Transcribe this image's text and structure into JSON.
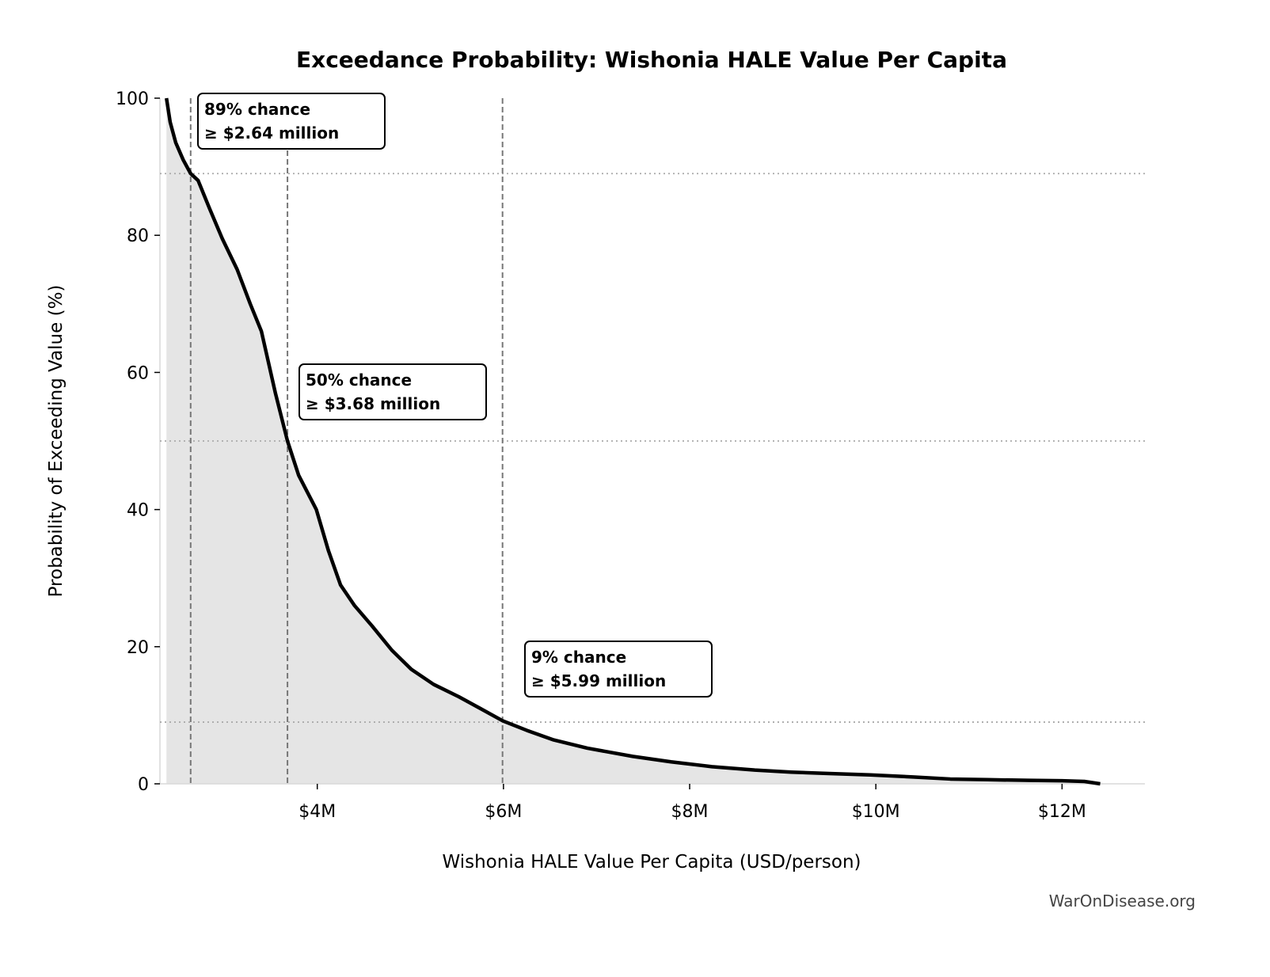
{
  "chart_data": {
    "type": "area",
    "title": "Exceedance Probability: Wishonia HALE Value Per Capita",
    "xlabel": "Wishonia HALE Value Per Capita (USD/person)",
    "ylabel": "Probability of Exceeding Value (%)",
    "xlim": [
      2.31,
      12.89
    ],
    "ylim": [
      0,
      100
    ],
    "x_ticks": [
      {
        "value": 4,
        "label": "$4M"
      },
      {
        "value": 6,
        "label": "$6M"
      },
      {
        "value": 8,
        "label": "$8M"
      },
      {
        "value": 10,
        "label": "$10M"
      },
      {
        "value": 12,
        "label": "$12M"
      }
    ],
    "y_ticks": [
      {
        "value": 0,
        "label": "0"
      },
      {
        "value": 20,
        "label": "20"
      },
      {
        "value": 40,
        "label": "40"
      },
      {
        "value": 60,
        "label": "60"
      },
      {
        "value": 80,
        "label": "80"
      },
      {
        "value": 100,
        "label": "100"
      }
    ],
    "grid": false,
    "x_units": "million USD",
    "series": [
      {
        "x": [
          2.38,
          2.42,
          2.48,
          2.56,
          2.64,
          2.72,
          2.84,
          2.98,
          3.14,
          3.28,
          3.4,
          3.55,
          3.68,
          3.8,
          3.99,
          4.12,
          4.25,
          4.4,
          4.59,
          4.8,
          5.01,
          5.25,
          5.52,
          5.75,
          5.99,
          6.25,
          6.54,
          6.9,
          7.39,
          7.8,
          8.24,
          8.7,
          9.09,
          9.5,
          9.94,
          10.4,
          10.8,
          11.2,
          11.65,
          12.0,
          12.24,
          12.41
        ],
        "y": [
          100,
          96.5,
          93.5,
          91,
          89,
          88,
          84,
          79.5,
          75,
          70,
          66,
          57,
          50,
          45,
          40,
          34,
          29,
          26,
          23,
          19.5,
          16.7,
          14.5,
          12.7,
          11,
          9.2,
          7.8,
          6.4,
          5.2,
          4,
          3.2,
          2.5,
          2.0,
          1.7,
          1.5,
          1.3,
          1.0,
          0.7,
          0.6,
          0.5,
          0.45,
          0.35,
          0
        ],
        "color": "#000000",
        "fill": "#e5e5e5"
      }
    ],
    "markers": [
      {
        "probability": 89,
        "value": 2.64,
        "line1": "89% chance",
        "line2": "≥ $2.64 million"
      },
      {
        "probability": 50,
        "value": 3.68,
        "line1": "50% chance",
        "line2": "≥ $3.68 million"
      },
      {
        "probability": 9,
        "value": 5.99,
        "line1": "9% chance",
        "line2": "≥ $5.99 million"
      }
    ]
  },
  "watermark": "WarOnDisease.org"
}
